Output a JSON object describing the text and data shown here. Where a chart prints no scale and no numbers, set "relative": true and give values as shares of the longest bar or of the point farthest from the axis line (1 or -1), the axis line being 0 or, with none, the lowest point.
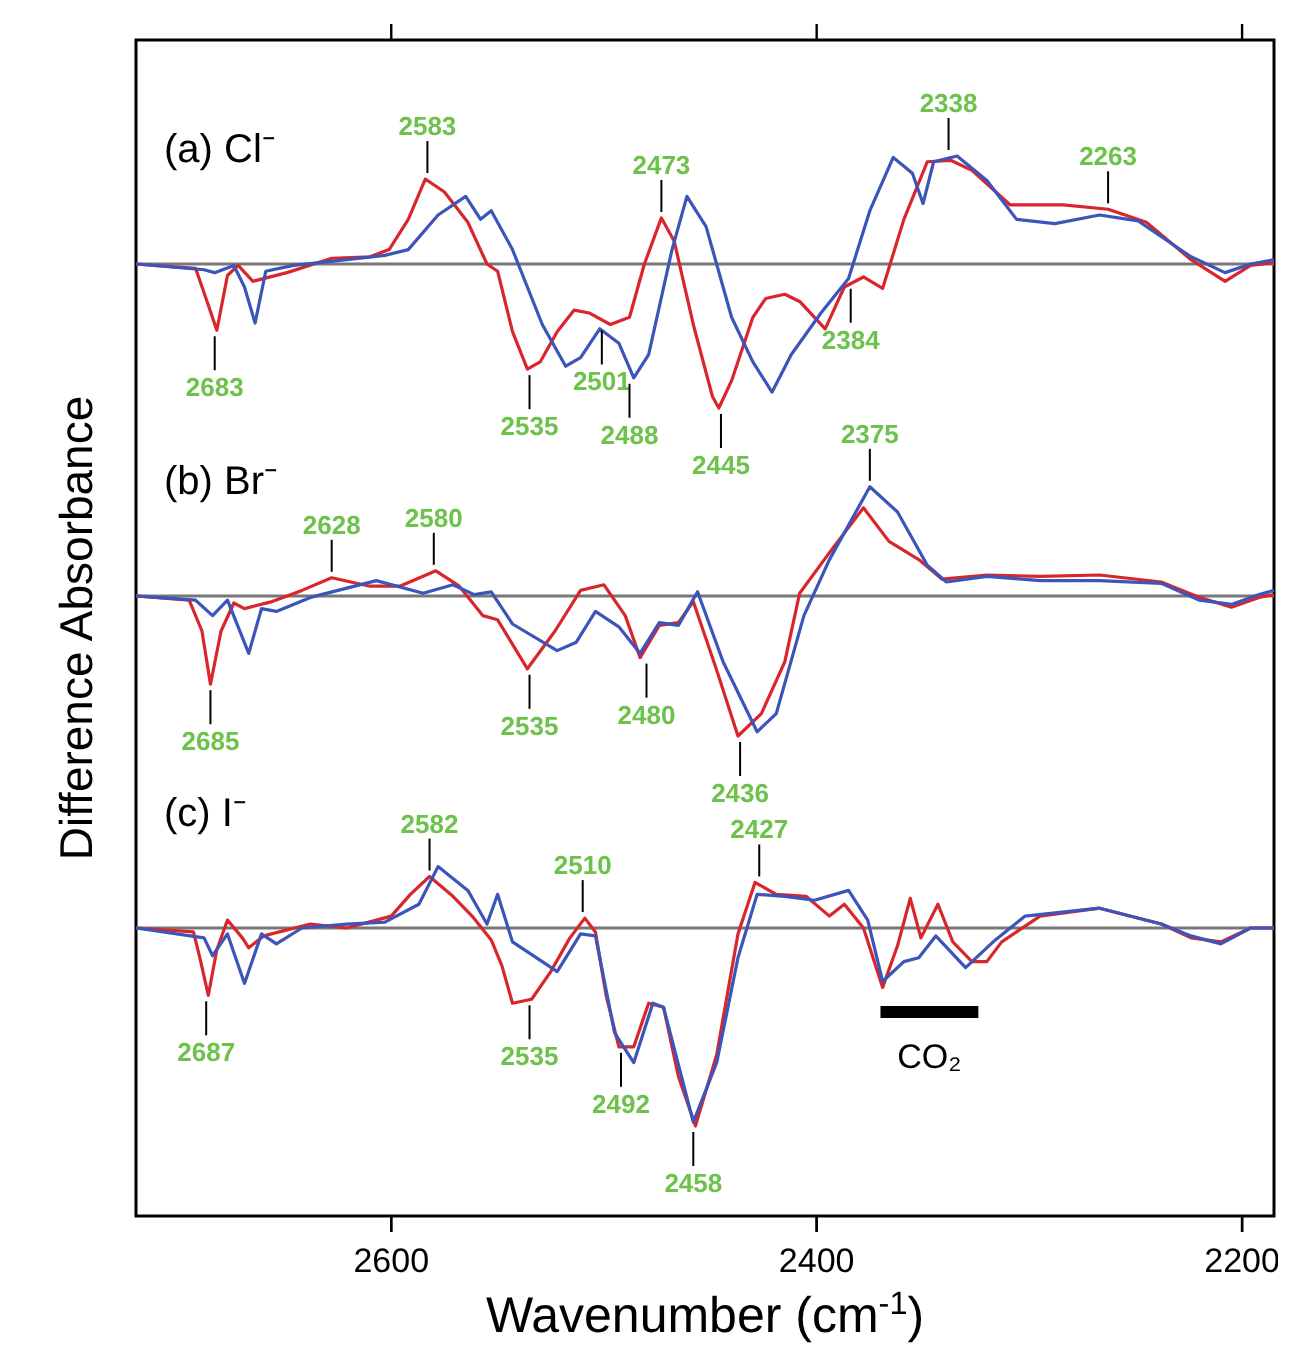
{
  "chart_data": [
    {
      "type": "line",
      "title": "(a)  Cl⁻",
      "ylabel": "Difference Absorbance",
      "relative": true,
      "xlim": [
        2720,
        2185
      ],
      "xticks": [
        2600,
        2400,
        2200
      ],
      "tick_labels": false,
      "series": [
        {
          "color": "#d9262c",
          "x": [
            2720,
            2692,
            2688,
            2682,
            2677,
            2672,
            2665,
            2649,
            2628,
            2610,
            2601,
            2592,
            2584,
            2575,
            2564,
            2555,
            2550,
            2543,
            2536,
            2530,
            2522,
            2514,
            2507,
            2497,
            2488,
            2481,
            2473,
            2467,
            2458,
            2449,
            2446,
            2440,
            2430,
            2424,
            2415,
            2408,
            2396,
            2387,
            2378,
            2369,
            2359,
            2348,
            2337,
            2327,
            2309,
            2284,
            2263,
            2245,
            2224,
            2208,
            2196,
            2185
          ],
          "values": [
            0,
            -0.03,
            -0.2,
            -0.46,
            -0.08,
            -0.01,
            -0.12,
            -0.06,
            0.04,
            0.05,
            0.1,
            0.31,
            0.59,
            0.5,
            0.29,
            0,
            -0.05,
            -0.47,
            -0.73,
            -0.68,
            -0.47,
            -0.32,
            -0.34,
            -0.42,
            -0.37,
            0,
            0.32,
            0.16,
            -0.42,
            -0.92,
            -1,
            -0.81,
            -0.37,
            -0.24,
            -0.21,
            -0.26,
            -0.45,
            -0.16,
            -0.09,
            -0.17,
            0.31,
            0.71,
            0.72,
            0.65,
            0.41,
            0.41,
            0.38,
            0.29,
            0.03,
            -0.12,
            -0.01,
            0.01
          ]
        },
        {
          "color": "#3b55b8",
          "x": [
            2720,
            2688,
            2683,
            2674,
            2669,
            2664,
            2659,
            2646,
            2621,
            2603,
            2592,
            2578,
            2565,
            2558,
            2553,
            2543,
            2529,
            2518,
            2511,
            2502,
            2493,
            2486,
            2479,
            2468,
            2461,
            2452,
            2440,
            2430,
            2421,
            2412,
            2398,
            2385,
            2375,
            2364,
            2355,
            2350,
            2345,
            2334,
            2320,
            2306,
            2288,
            2267,
            2249,
            2224,
            2208,
            2196,
            2185
          ],
          "values": [
            0,
            -0.04,
            -0.06,
            -0.01,
            -0.16,
            -0.41,
            -0.05,
            -0.01,
            0.03,
            0.06,
            0.1,
            0.34,
            0.47,
            0.31,
            0.37,
            0.1,
            -0.42,
            -0.71,
            -0.65,
            -0.45,
            -0.55,
            -0.79,
            -0.63,
            0.1,
            0.47,
            0.26,
            -0.37,
            -0.68,
            -0.89,
            -0.63,
            -0.34,
            -0.1,
            0.37,
            0.74,
            0.63,
            0.42,
            0.71,
            0.75,
            0.58,
            0.31,
            0.28,
            0.34,
            0.3,
            0.05,
            -0.06,
            0,
            0.03
          ]
        }
      ],
      "annotations": [
        {
          "text": "2683",
          "x": 2683,
          "y": -0.46
        },
        {
          "text": "2583",
          "x": 2583,
          "y": 0.59
        },
        {
          "text": "2535",
          "x": 2535,
          "y": -0.73
        },
        {
          "text": "2501",
          "x": 2501,
          "y": -0.42
        },
        {
          "text": "2488",
          "x": 2488,
          "y": -0.79
        },
        {
          "text": "2473",
          "x": 2473,
          "y": 0.32
        },
        {
          "text": "2445",
          "x": 2445,
          "y": -1
        },
        {
          "text": "2384",
          "x": 2384,
          "y": -0.13
        },
        {
          "text": "2338",
          "x": 2338,
          "y": 0.75
        },
        {
          "text": "2263",
          "x": 2263,
          "y": 0.38
        }
      ]
    },
    {
      "type": "line",
      "title": "(b)  Br⁻",
      "relative": true,
      "xlim": [
        2720,
        2185
      ],
      "xticks": [
        2600,
        2400,
        2200
      ],
      "tick_labels": false,
      "series": [
        {
          "color": "#d9262c",
          "x": [
            2720,
            2695,
            2689,
            2685,
            2680,
            2674,
            2669,
            2656,
            2642,
            2628,
            2610,
            2596,
            2579,
            2568,
            2557,
            2550,
            2536,
            2523,
            2511,
            2500,
            2490,
            2483,
            2474,
            2465,
            2458,
            2447,
            2437,
            2426,
            2415,
            2408,
            2394,
            2378,
            2366,
            2352,
            2341,
            2320,
            2295,
            2267,
            2238,
            2220,
            2205,
            2192,
            2185
          ],
          "values": [
            0,
            -0.03,
            -0.25,
            -0.63,
            -0.25,
            -0.05,
            -0.09,
            -0.04,
            0.04,
            0.13,
            0.07,
            0.07,
            0.18,
            0.07,
            -0.14,
            -0.17,
            -0.52,
            -0.25,
            0.04,
            0.08,
            -0.14,
            -0.44,
            -0.21,
            -0.19,
            -0.04,
            -0.53,
            -1,
            -0.84,
            -0.47,
            0.02,
            0.31,
            0.63,
            0.39,
            0.26,
            0.12,
            0.15,
            0.14,
            0.15,
            0.1,
            -0.01,
            -0.08,
            -0.01,
            0.01
          ]
        },
        {
          "color": "#3b55b8",
          "x": [
            2720,
            2692,
            2684,
            2677,
            2667,
            2661,
            2654,
            2638,
            2607,
            2585,
            2571,
            2561,
            2553,
            2543,
            2522,
            2513,
            2504,
            2493,
            2483,
            2474,
            2465,
            2456,
            2444,
            2428,
            2419,
            2406,
            2394,
            2375,
            2362,
            2348,
            2339,
            2320,
            2295,
            2267,
            2238,
            2220,
            2205,
            2192,
            2185
          ],
          "values": [
            0,
            -0.03,
            -0.14,
            -0.03,
            -0.41,
            -0.09,
            -0.11,
            -0.01,
            0.11,
            0.02,
            0.08,
            0.01,
            0.03,
            -0.2,
            -0.39,
            -0.33,
            -0.11,
            -0.22,
            -0.41,
            -0.19,
            -0.21,
            0.03,
            -0.47,
            -0.97,
            -0.84,
            -0.14,
            0.26,
            0.78,
            0.6,
            0.22,
            0.1,
            0.14,
            0.11,
            0.11,
            0.09,
            -0.03,
            -0.06,
            0.01,
            0.04
          ]
        }
      ],
      "annotations": [
        {
          "text": "2685",
          "x": 2685,
          "y": -0.63
        },
        {
          "text": "2628",
          "x": 2628,
          "y": 0.13
        },
        {
          "text": "2580",
          "x": 2580,
          "y": 0.18
        },
        {
          "text": "2535",
          "x": 2535,
          "y": -0.52
        },
        {
          "text": "2480",
          "x": 2480,
          "y": -0.44
        },
        {
          "text": "2436",
          "x": 2436,
          "y": -1
        },
        {
          "text": "2375",
          "x": 2375,
          "y": 0.78
        }
      ]
    },
    {
      "type": "line",
      "title": "(c)  I⁻",
      "xlabel": "Wavenumber (cm$^{-1}$)",
      "relative": true,
      "xlim": [
        2720,
        2185
      ],
      "xticks": [
        2600,
        2400,
        2200
      ],
      "tick_labels": "x",
      "series": [
        {
          "color": "#d9262c",
          "x": [
            2720,
            2693,
            2690,
            2686,
            2682,
            2677,
            2670,
            2667,
            2660,
            2638,
            2621,
            2607,
            2600,
            2591,
            2582,
            2571,
            2562,
            2553,
            2548,
            2543,
            2534,
            2525,
            2516,
            2509,
            2504,
            2499,
            2493,
            2486,
            2479,
            2472,
            2465,
            2457,
            2447,
            2437,
            2429,
            2419,
            2405,
            2394,
            2387,
            2378,
            2369,
            2362,
            2356,
            2351,
            2343,
            2336,
            2327,
            2320,
            2313,
            2295,
            2267,
            2238,
            2224,
            2210,
            2196,
            2185
          ],
          "values": [
            0,
            -0.02,
            -0.15,
            -0.34,
            -0.11,
            0.04,
            -0.05,
            -0.1,
            -0.04,
            0.02,
            0,
            0.04,
            0.06,
            0.17,
            0.26,
            0.16,
            0.06,
            -0.06,
            -0.19,
            -0.38,
            -0.36,
            -0.22,
            -0.05,
            0.05,
            -0.02,
            -0.34,
            -0.6,
            -0.6,
            -0.38,
            -0.4,
            -0.75,
            -1,
            -0.64,
            -0.03,
            0.23,
            0.17,
            0.16,
            0.06,
            0.12,
            0,
            -0.3,
            -0.09,
            0.15,
            -0.05,
            0.12,
            -0.07,
            -0.17,
            -0.17,
            -0.07,
            0.06,
            0.1,
            0.02,
            -0.05,
            -0.07,
            0,
            0
          ]
        },
        {
          "color": "#3b55b8",
          "x": [
            2720,
            2688,
            2684,
            2677,
            2669,
            2661,
            2654,
            2642,
            2621,
            2603,
            2587,
            2578,
            2564,
            2555,
            2550,
            2543,
            2529,
            2522,
            2511,
            2504,
            2495,
            2486,
            2477,
            2472,
            2458,
            2447,
            2437,
            2428,
            2415,
            2401,
            2385,
            2376,
            2369,
            2359,
            2352,
            2344,
            2330,
            2316,
            2302,
            2267,
            2238,
            2224,
            2210,
            2196,
            2185
          ],
          "values": [
            0,
            -0.05,
            -0.14,
            -0.03,
            -0.28,
            -0.03,
            -0.08,
            0,
            0.02,
            0.03,
            0.12,
            0.31,
            0.19,
            0.02,
            0.17,
            -0.07,
            -0.17,
            -0.22,
            -0.03,
            -0.04,
            -0.53,
            -0.68,
            -0.38,
            -0.4,
            -0.98,
            -0.68,
            -0.15,
            0.17,
            0.16,
            0.14,
            0.19,
            0.04,
            -0.27,
            -0.17,
            -0.15,
            -0.04,
            -0.2,
            -0.06,
            0.06,
            0.1,
            0.02,
            -0.04,
            -0.08,
            0,
            0
          ]
        }
      ],
      "bands": [
        {
          "axis": "x",
          "from": 2370,
          "to": 2324,
          "label": "CO₂",
          "color": "#000000"
        }
      ],
      "annotations": [
        {
          "text": "2687",
          "x": 2687,
          "y": -0.34
        },
        {
          "text": "2582",
          "x": 2582,
          "y": 0.26
        },
        {
          "text": "2535",
          "x": 2535,
          "y": -0.36
        },
        {
          "text": "2510",
          "x": 2510,
          "y": 0.05
        },
        {
          "text": "2492",
          "x": 2492,
          "y": -0.6
        },
        {
          "text": "2458",
          "x": 2458,
          "y": -1
        },
        {
          "text": "2427",
          "x": 2427,
          "y": 0.23
        }
      ]
    }
  ]
}
